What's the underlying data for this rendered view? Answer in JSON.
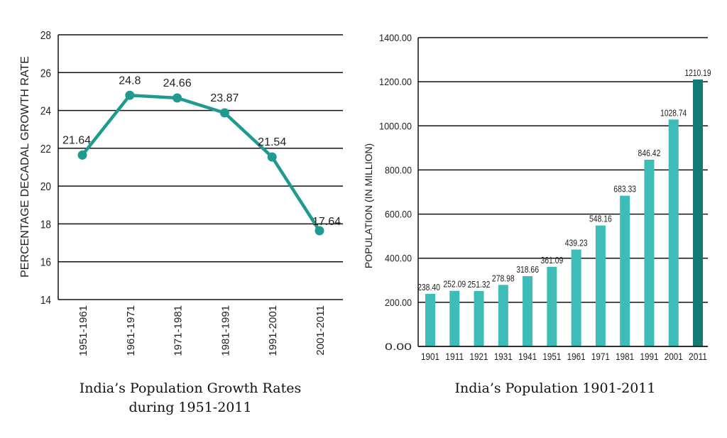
{
  "chart_data": [
    {
      "type": "line",
      "title": "India’s Population Growth Rates during 1951-2011",
      "title_lines": [
        "India’s Population Growth Rates",
        "during 1951-2011"
      ],
      "xlabel": "",
      "ylabel": "PERCENTAGE DECADAL GROWTH RATE",
      "categories": [
        "1951-1961",
        "1961-1971",
        "1971-1981",
        "1981-1991",
        "1991-2001",
        "2001-2011"
      ],
      "values": [
        21.64,
        24.8,
        24.66,
        23.87,
        21.54,
        17.64
      ],
      "data_labels": [
        "21.64",
        "24.8",
        "24.66",
        "23.87",
        "21.54",
        "17.64"
      ],
      "yticks": [
        "14",
        "16",
        "18",
        "20",
        "22",
        "24",
        "26",
        "28"
      ],
      "ylim": [
        14,
        28
      ],
      "grid": true,
      "color": "#1f9a90"
    },
    {
      "type": "bar",
      "title": "India’s Population 1901-2011",
      "xlabel": "",
      "ylabel": "POPULATION (IN MILLION)",
      "categories": [
        "1901",
        "1911",
        "1921",
        "1931",
        "1941",
        "1951",
        "1961",
        "1971",
        "1981",
        "1991",
        "2001",
        "2011"
      ],
      "values": [
        238.4,
        252.09,
        251.32,
        278.98,
        318.66,
        361.09,
        439.23,
        548.16,
        683.33,
        846.42,
        1028.74,
        1210.19
      ],
      "data_labels": [
        "238.40",
        "252.09",
        "251.32",
        "278.98",
        "318.66",
        "361.09",
        "439.23",
        "548.16",
        "683.33",
        "846.42",
        "1028.74",
        "1210.19"
      ],
      "yticks": [
        "0.00",
        "200.00",
        "400.00",
        "600.00",
        "800.00",
        "1000.00",
        "1200.00",
        "1400.00"
      ],
      "ylim": [
        0,
        1400
      ],
      "grid": true,
      "color": "#3dbcb8",
      "highlight_color": "#137a74"
    }
  ]
}
